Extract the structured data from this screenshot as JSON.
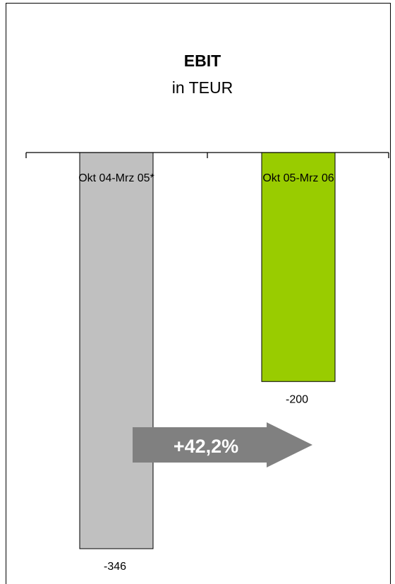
{
  "chart_data": {
    "type": "bar",
    "title": "EBIT",
    "subtitle": "in TEUR",
    "categories": [
      "Okt 04-Mrz 05*",
      "Okt 05-Mrz 06"
    ],
    "values": [
      -346,
      -200
    ],
    "value_labels": [
      "-346",
      "-200"
    ],
    "ylim": [
      -346,
      0
    ],
    "grid": false,
    "colors": [
      "#c0c0c0",
      "#99cc00"
    ],
    "annotation": "+42,2%",
    "annotation_color": "#808080"
  }
}
